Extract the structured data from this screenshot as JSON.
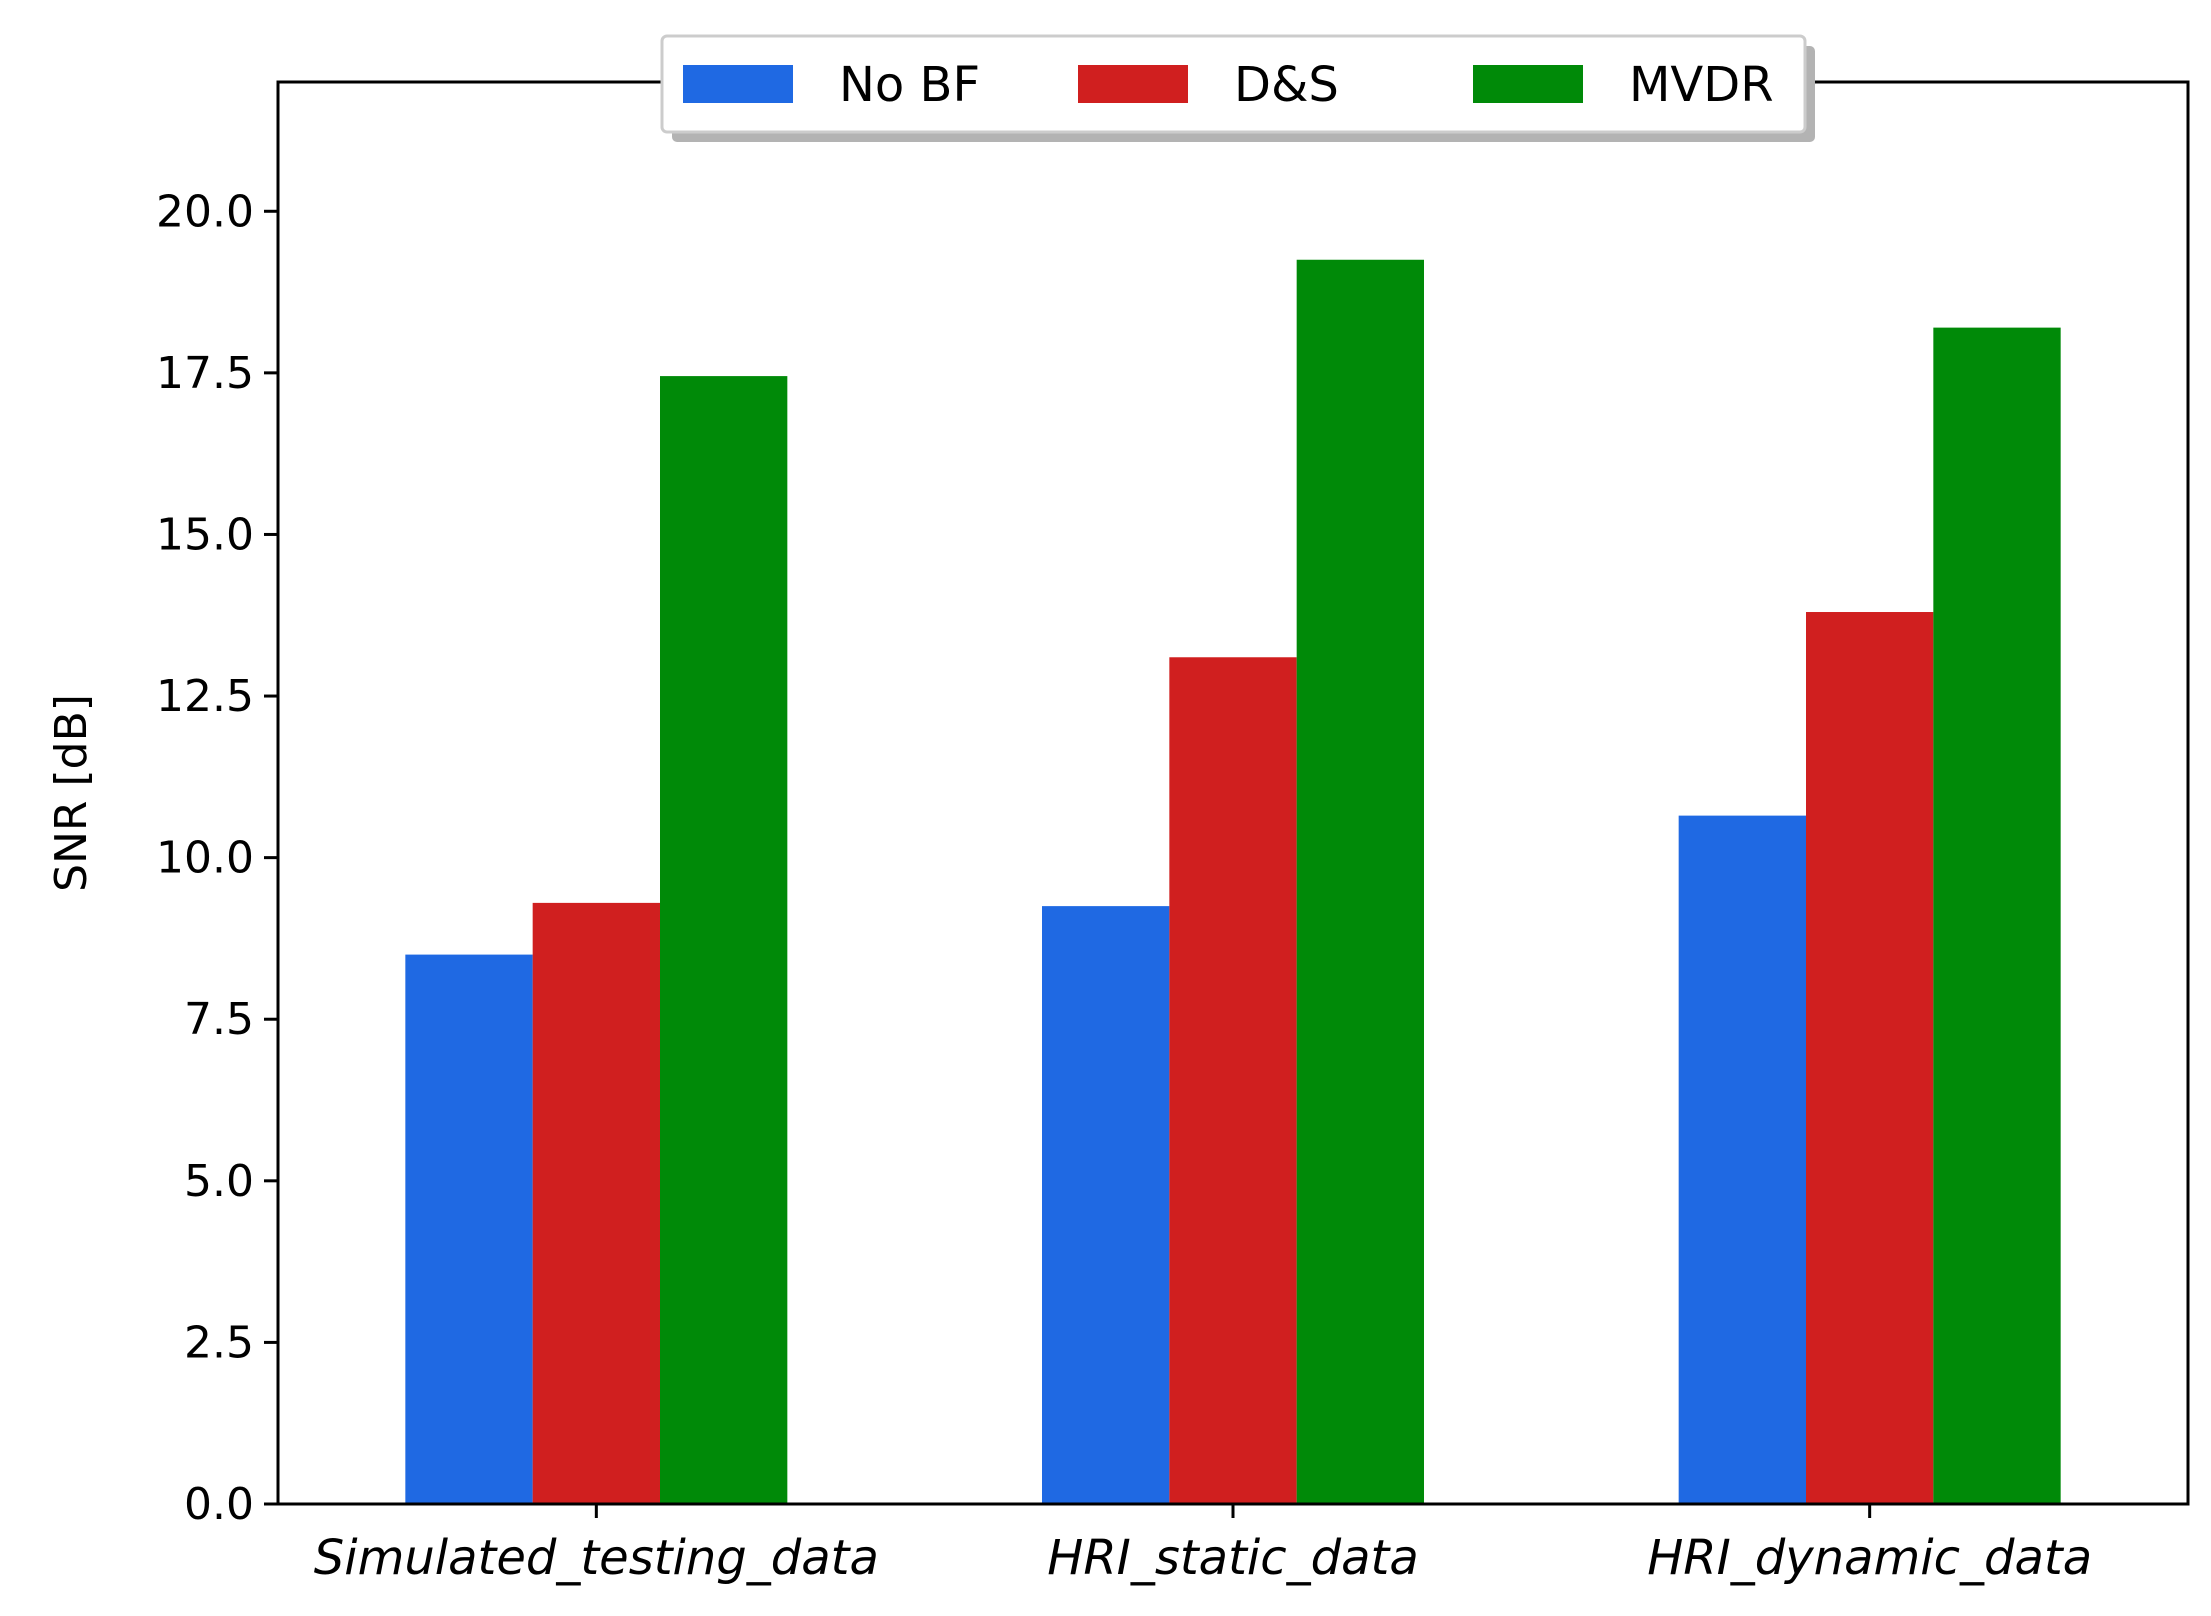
{
  "chart_data": {
    "type": "bar",
    "title": "",
    "xlabel": "",
    "ylabel": "SNR [dB]",
    "ylim": [
      0,
      22
    ],
    "yticks": [
      0.0,
      2.5,
      5.0,
      7.5,
      10.0,
      12.5,
      15.0,
      17.5,
      20.0
    ],
    "ytick_labels": [
      "0.0",
      "2.5",
      "5.0",
      "7.5",
      "10.0",
      "12.5",
      "15.0",
      "17.5",
      "20.0"
    ],
    "categories": [
      "Simulated_testing_data",
      "HRI_static_data",
      "HRI_dynamic_data"
    ],
    "series": [
      {
        "name": "No BF",
        "color": "#1f69e3",
        "values": [
          8.5,
          9.25,
          10.65
        ]
      },
      {
        "name": "D&S",
        "color": "#d01f1f",
        "values": [
          9.3,
          13.1,
          13.8
        ]
      },
      {
        "name": "MVDR",
        "color": "#008a08",
        "values": [
          17.45,
          19.25,
          18.2
        ]
      }
    ],
    "grid": false,
    "legend_position": "top-center"
  }
}
